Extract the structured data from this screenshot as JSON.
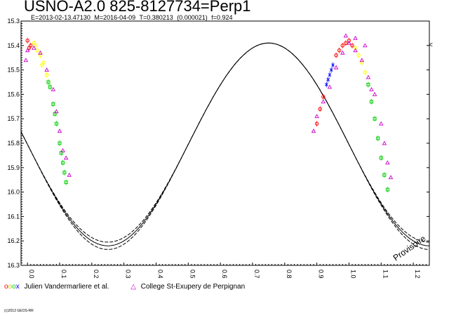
{
  "header": {
    "title": "USNO-A2.0 825-8127734=Perp1",
    "info": "E=2013-02-13.47130   M=2016-04-09   T=0.380213 (0.000021)   f=0.924"
  },
  "nav": {
    "arrow_label": "<"
  },
  "legend": {
    "observer1_symbols": [
      "o",
      "o",
      "o",
      "x"
    ],
    "observer1_label": "Julien Vandermarliere et al.",
    "observer2_symbol": "△",
    "observer2_label": "College St-Exupery de Perpignan"
  },
  "footer": {
    "copyright": "(c)2013 GEOS-RR"
  },
  "chart_data": {
    "type": "scatter",
    "title": "USNO-A2.0 825-8127734=Perp1",
    "xlabel": "",
    "ylabel": "",
    "xlim": [
      -0.02,
      1.25
    ],
    "ylim": [
      16.3,
      15.3
    ],
    "y_inverted": true,
    "x_ticks": [
      "0.0",
      "0.1",
      "0.2",
      "0.3",
      "0.4",
      "0.5",
      "0.6",
      "0.7",
      "0.8",
      "0.9",
      "1.0",
      "1.1",
      "1.2"
    ],
    "y_ticks": [
      "15.3",
      "15.4",
      "15.5",
      "15.6",
      "15.7",
      "15.8",
      "15.9",
      "16.0",
      "16.1",
      "16.2",
      "16.3"
    ],
    "annotation": "Provisoire",
    "model": {
      "max_mag": 15.39,
      "min_mag": 16.22,
      "min_phase": 0.25,
      "envelope": 0.015
    },
    "series": [
      {
        "name": "Julien Vandermarliere et al.",
        "marker": "mixed",
        "colors": [
          "#ff0000",
          "#ffff00",
          "#00cc00",
          "#0000ff"
        ],
        "points": [
          [
            0.0,
            15.38,
            "#ff0000"
          ],
          [
            0.01,
            15.4,
            "#ff0000"
          ],
          [
            0.02,
            15.39,
            "#ffff00"
          ],
          [
            0.03,
            15.42,
            "#ffff00"
          ],
          [
            0.04,
            15.44,
            "#ffff00"
          ],
          [
            0.05,
            15.47,
            "#ffff00"
          ],
          [
            0.06,
            15.52,
            "#ffff00"
          ],
          [
            0.07,
            15.57,
            "#00cc00"
          ],
          [
            0.08,
            15.64,
            "#00cc00"
          ],
          [
            0.09,
            15.72,
            "#00cc00"
          ],
          [
            0.1,
            15.8,
            "#00cc00"
          ],
          [
            0.11,
            15.88,
            "#00cc00"
          ],
          [
            0.12,
            15.96,
            "#00cc00"
          ],
          [
            0.115,
            15.92,
            "#00cc00"
          ],
          [
            0.105,
            15.84,
            "#00cc00"
          ],
          [
            0.005,
            15.41,
            "#ff0000"
          ],
          [
            0.025,
            15.4,
            "#ffff00"
          ],
          [
            0.045,
            15.48,
            "#ffff00"
          ],
          [
            0.065,
            15.55,
            "#00cc00"
          ],
          [
            0.085,
            15.68,
            "#00cc00"
          ],
          [
            0.9,
            15.72,
            "#ff0000"
          ],
          [
            0.91,
            15.66,
            "#ff0000"
          ],
          [
            0.92,
            15.61,
            "#ff0000"
          ],
          [
            0.93,
            15.56,
            "#0000ff"
          ],
          [
            0.94,
            15.52,
            "#0000ff"
          ],
          [
            0.95,
            15.48,
            "#0000ff"
          ],
          [
            0.96,
            15.44,
            "#ff0000"
          ],
          [
            0.97,
            15.42,
            "#ff0000"
          ],
          [
            0.98,
            15.4,
            "#ff0000"
          ],
          [
            0.99,
            15.39,
            "#ff0000"
          ],
          [
            1.0,
            15.38,
            "#ff0000"
          ],
          [
            1.01,
            15.4,
            "#ff0000"
          ],
          [
            1.02,
            15.41,
            "#ffff00"
          ],
          [
            1.03,
            15.44,
            "#ffff00"
          ],
          [
            1.04,
            15.47,
            "#ffff00"
          ],
          [
            1.05,
            15.51,
            "#ffff00"
          ],
          [
            1.06,
            15.56,
            "#00cc00"
          ],
          [
            1.07,
            15.63,
            "#00cc00"
          ],
          [
            1.08,
            15.7,
            "#00cc00"
          ],
          [
            1.09,
            15.78,
            "#00cc00"
          ],
          [
            1.1,
            15.86,
            "#00cc00"
          ],
          [
            1.11,
            15.93,
            "#00cc00"
          ],
          [
            1.12,
            15.99,
            "#00cc00"
          ],
          [
            0.935,
            15.54,
            "#0000ff"
          ],
          [
            0.945,
            15.5,
            "#0000ff"
          ]
        ]
      },
      {
        "name": "College St-Exupery de Perpignan",
        "marker": "triangle",
        "color": "#cc00cc",
        "points": [
          [
            0.0,
            15.42
          ],
          [
            -0.005,
            15.46
          ],
          [
            0.02,
            15.41
          ],
          [
            0.04,
            15.43
          ],
          [
            0.06,
            15.5
          ],
          [
            0.08,
            15.58
          ],
          [
            0.09,
            15.67
          ],
          [
            0.1,
            15.75
          ],
          [
            0.11,
            15.83
          ],
          [
            0.12,
            15.86
          ],
          [
            0.13,
            15.93
          ],
          [
            0.89,
            15.75
          ],
          [
            0.9,
            15.69
          ],
          [
            0.92,
            15.63
          ],
          [
            0.94,
            15.57
          ],
          [
            0.96,
            15.49
          ],
          [
            0.98,
            15.43
          ],
          [
            1.0,
            15.39
          ],
          [
            1.02,
            15.42
          ],
          [
            1.04,
            15.46
          ],
          [
            1.06,
            15.53
          ],
          [
            1.08,
            15.6
          ],
          [
            1.1,
            15.72
          ],
          [
            1.11,
            15.8
          ],
          [
            1.12,
            15.88
          ],
          [
            1.13,
            15.94
          ],
          [
            1.02,
            15.37
          ],
          [
            0.99,
            15.36
          ],
          [
            1.05,
            15.4
          ],
          [
            1.07,
            15.58
          ]
        ]
      }
    ]
  }
}
